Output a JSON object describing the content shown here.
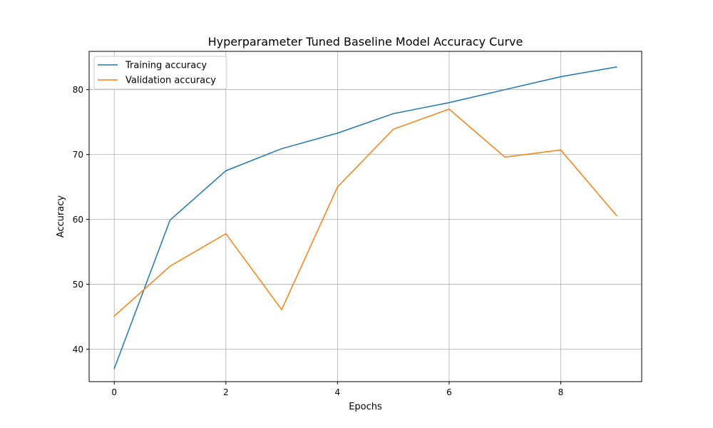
{
  "chart_data": {
    "type": "line",
    "title": "Hyperparameter Tuned Baseline Model Accuracy Curve",
    "xlabel": "Epochs",
    "ylabel": "Accuracy",
    "xlim": [
      -0.45,
      9.45
    ],
    "ylim": [
      35.0,
      85.9
    ],
    "grid": true,
    "legend_position": "top-left",
    "x": [
      0,
      1,
      2,
      3,
      4,
      5,
      6,
      7,
      8,
      9
    ],
    "xticks": [
      0,
      2,
      4,
      6,
      8
    ],
    "xtick_labels": [
      "0",
      "2",
      "4",
      "6",
      "8"
    ],
    "yticks": [
      40,
      50,
      60,
      70,
      80
    ],
    "ytick_labels": [
      "40",
      "50",
      "60",
      "70",
      "80"
    ],
    "series": [
      {
        "name": "Training accuracy",
        "color": "#1f77b4",
        "values": [
          37.0,
          59.9,
          67.5,
          70.9,
          73.3,
          76.3,
          78.0,
          80.0,
          82.0,
          83.5
        ]
      },
      {
        "name": "Validation accuracy",
        "color": "#ff7f0e",
        "values": [
          45.1,
          52.8,
          57.8,
          46.1,
          65.0,
          73.9,
          77.0,
          69.6,
          70.7,
          60.6
        ]
      }
    ]
  }
}
